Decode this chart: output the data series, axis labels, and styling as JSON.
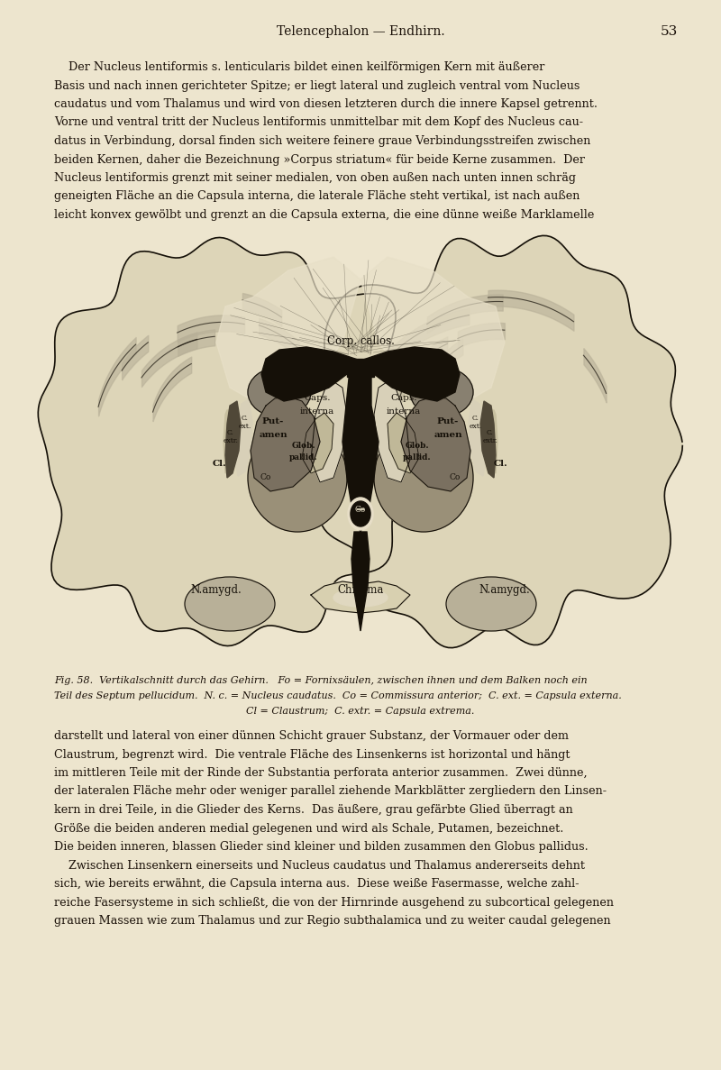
{
  "page_bg": "#ede5ce",
  "text_color": "#1a1008",
  "page_number": "53",
  "header_text": "Telencephalon — Endhirn.",
  "top_para_indent": "    Der Nucleus lentiformis s. lenticularis bildet einen keilförmigen Kern mit äußerer",
  "top_para_lines": [
    "    Der Nucleus lentiformis s. lenticularis bildet einen keilförmigen Kern mit äußerer",
    "Basis und nach innen gerichteter Spitze; er liegt lateral und zugleich ventral vom Nucleus",
    "caudatus und vom Thalamus und wird von diesen letzteren durch die innere Kapsel getrennt.",
    "Vorne und ventral tritt der Nucleus lentiformis unmittelbar mit dem Kopf des Nucleus cau-",
    "datus in Verbindung, dorsal finden sich weitere feinere graue Verbindungsstreifen zwischen",
    "beiden Kernen, daher die Bezeichnung »Corpus striatum« für beide Kerne zusammen.  Der",
    "Nucleus lentiformis grenzt mit seiner medialen, von oben außen nach unten innen schräg",
    "geneigten Fläche an die Capsula interna, die laterale Fläche steht vertikal, ist nach außen",
    "leicht konvex gewölbt und grenzt an die Capsula externa, die eine dünne weiße Marklamelle"
  ],
  "caption_line1": "Fig. 58.  Vertikalschnitt durch das Gehirn.   Fo = Fornixsäulen, zwischen ihnen und dem Balken noch ein",
  "caption_line2": "Teil des Septum pellucidum.  N. c. = Nucleus caudatus.  Co = Commissura anterior;  C. ext. = Capsula externa.",
  "caption_line3": "Cl = Claustrum;  C. extr. = Capsula extrema.",
  "bottom_para_lines": [
    "darstellt und lateral von einer dünnen Schicht grauer Substanz, der Vormauer oder dem",
    "Claustrum, begrenzt wird.  Die ventrale Fläche des Linsenkerns ist horizontal und hängt",
    "im mittleren Teile mit der Rinde der Substantia perforata anterior zusammen.  Zwei dünne,",
    "der lateralen Fläche mehr oder weniger parallel ziehende Markblätter zergliedern den Linsen-",
    "kern in drei Teile, in die Glieder des Kerns.  Das äußere, grau gefärbte Glied überragt an",
    "Größe die beiden anderen medial gelegenen und wird als Schale, Putamen, bezeichnet.",
    "Die beiden inneren, blassen Glieder sind kleiner und bilden zusammen den Globus pallidus.",
    "    Zwischen Linsenkern einerseits und Nucleus caudatus und Thalamus andererseits dehnt",
    "sich, wie bereits erwähnt, die Capsula interna aus.  Diese weiße Fasermasse, welche zahl-",
    "reiche Fasersysteme in sich schließt, die von der Hirnrinde ausgehend zu subcortical gelegenen",
    "grauen Massen wie zum Thalamus und zur Regio subthalamica und zu weiter caudal gelegenen"
  ],
  "dark": "#151008",
  "mid_dark": "#2a2018",
  "gray_cortex": "#b8b098",
  "light_cortex": "#ddd5b8",
  "white_matter": "#e8e0c8",
  "putamen_color": "#7a7060",
  "globus_color": "#c0b898",
  "capsula_color": "#d8d0b8",
  "thalamus_color": "#9a9078",
  "nc_color": "#888070"
}
